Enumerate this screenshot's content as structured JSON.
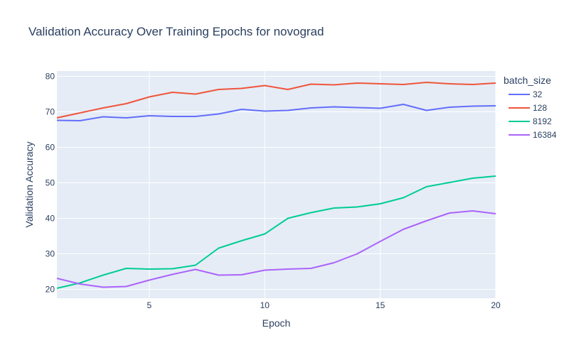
{
  "chart_data": {
    "type": "line",
    "title": "Validation Accuracy Over Training Epochs for novograd",
    "xlabel": "Epoch",
    "ylabel": "Validation Accuracy",
    "xlim": [
      1,
      20
    ],
    "ylim": [
      17.5,
      81.5
    ],
    "xticks": [
      5,
      10,
      15,
      20
    ],
    "yticks": [
      20,
      30,
      40,
      50,
      60,
      70,
      80
    ],
    "grid": true,
    "legend_title": "batch_size",
    "legend_position": "right",
    "x": [
      1,
      2,
      3,
      4,
      5,
      6,
      7,
      8,
      9,
      10,
      11,
      12,
      13,
      14,
      15,
      16,
      17,
      18,
      19,
      20
    ],
    "series": [
      {
        "name": "32",
        "color": "#636efa",
        "values": [
          67.6,
          67.5,
          68.6,
          68.3,
          68.9,
          68.7,
          68.7,
          69.4,
          70.7,
          70.2,
          70.4,
          71.1,
          71.4,
          71.2,
          71.0,
          72.1,
          70.4,
          71.3,
          71.6,
          71.7
        ]
      },
      {
        "name": "128",
        "color": "#ef553b",
        "values": [
          68.3,
          69.7,
          71.1,
          72.3,
          74.2,
          75.5,
          75.0,
          76.3,
          76.6,
          77.4,
          76.3,
          77.8,
          77.6,
          78.1,
          77.9,
          77.7,
          78.3,
          77.9,
          77.7,
          78.1
        ]
      },
      {
        "name": "8192",
        "color": "#00cc96",
        "values": [
          20.3,
          21.8,
          24.0,
          25.9,
          25.7,
          25.8,
          26.8,
          31.6,
          33.7,
          35.6,
          40.0,
          41.6,
          42.9,
          43.2,
          44.1,
          45.8,
          48.9,
          50.1,
          51.3,
          51.9
        ]
      },
      {
        "name": "16384",
        "color": "#ab63fa",
        "values": [
          23.1,
          21.5,
          20.6,
          20.8,
          22.6,
          24.2,
          25.6,
          24.0,
          24.1,
          25.4,
          25.7,
          25.9,
          27.5,
          30.0,
          33.5,
          36.9,
          39.3,
          41.5,
          42.1,
          41.3
        ]
      }
    ]
  }
}
